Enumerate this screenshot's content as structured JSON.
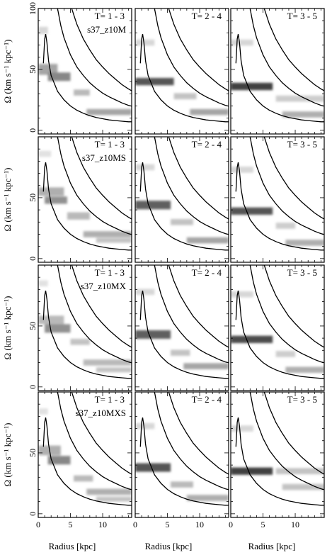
{
  "chart_data": {
    "type": "heatmap",
    "xlabel": "Radius [kpc]",
    "ylabel": "Ω (km s⁻¹ kpc⁻¹)",
    "xlim": [
      0,
      14.5
    ],
    "ylim": [
      -3,
      100
    ],
    "x_ticks": [
      0,
      5,
      10
    ],
    "y_ticks": [
      0,
      50,
      100
    ],
    "grid": false,
    "columns": [
      "T= 1 - 3",
      "T= 2 - 4",
      "T= 3 - 5"
    ],
    "rows": [
      {
        "model": "s37_z10M",
        "panels": [
          {
            "label": "T= 1 - 3",
            "bands": [
              {
                "x": [
                  0,
                  1.5
                ],
                "y": 82,
                "h": 6,
                "v": 0.2
              },
              {
                "x": [
                  0,
                  3.0
                ],
                "y": 50,
                "h": 9,
                "v": 0.45
              },
              {
                "x": [
                  1.5,
                  5.0
                ],
                "y": 44,
                "h": 7,
                "v": 0.6
              },
              {
                "x": [
                  5.5,
                  8.0
                ],
                "y": 31,
                "h": 5,
                "v": 0.35
              },
              {
                "x": [
                  7.5,
                  14.5
                ],
                "y": 15,
                "h": 5,
                "v": 0.45
              }
            ]
          },
          {
            "label": "T= 2 - 4",
            "bands": [
              {
                "x": [
                  0,
                  3.0
                ],
                "y": 72,
                "h": 5,
                "v": 0.2
              },
              {
                "x": [
                  0,
                  6.0
                ],
                "y": 40,
                "h": 6,
                "v": 0.85
              },
              {
                "x": [
                  6.0,
                  9.5
                ],
                "y": 28,
                "h": 5,
                "v": 0.3
              },
              {
                "x": [
                  8.5,
                  14.5
                ],
                "y": 15,
                "h": 5,
                "v": 0.45
              }
            ]
          },
          {
            "label": "T= 3 - 5",
            "bands": [
              {
                "x": [
                  0,
                  3.5
                ],
                "y": 72,
                "h": 5,
                "v": 0.2
              },
              {
                "x": [
                  0,
                  6.5
                ],
                "y": 36,
                "h": 6,
                "v": 0.95
              },
              {
                "x": [
                  7.0,
                  14.5
                ],
                "y": 26,
                "h": 5,
                "v": 0.25
              },
              {
                "x": [
                  8.0,
                  14.5
                ],
                "y": 13,
                "h": 5,
                "v": 0.4
              }
            ]
          }
        ]
      },
      {
        "model": "s37_z10MS",
        "panels": [
          {
            "label": "T= 1 - 3",
            "bands": [
              {
                "x": [
                  0,
                  2.0
                ],
                "y": 86,
                "h": 5,
                "v": 0.15
              },
              {
                "x": [
                  0,
                  4.0
                ],
                "y": 55,
                "h": 7,
                "v": 0.4
              },
              {
                "x": [
                  1.0,
                  4.5
                ],
                "y": 48,
                "h": 6,
                "v": 0.55
              },
              {
                "x": [
                  4.5,
                  8.0
                ],
                "y": 35,
                "h": 6,
                "v": 0.35
              },
              {
                "x": [
                  7.0,
                  14.5
                ],
                "y": 20,
                "h": 5,
                "v": 0.4
              },
              {
                "x": [
                  9.0,
                  14.5
                ],
                "y": 15,
                "h": 4,
                "v": 0.3
              }
            ]
          },
          {
            "label": "T= 2 - 4",
            "bands": [
              {
                "x": [
                  0,
                  3.0
                ],
                "y": 75,
                "h": 5,
                "v": 0.2
              },
              {
                "x": [
                  0,
                  5.5
                ],
                "y": 44,
                "h": 7,
                "v": 0.8
              },
              {
                "x": [
                  5.5,
                  9.0
                ],
                "y": 30,
                "h": 5,
                "v": 0.3
              },
              {
                "x": [
                  8.0,
                  14.5
                ],
                "y": 15,
                "h": 5,
                "v": 0.45
              }
            ]
          },
          {
            "label": "T= 3 - 5",
            "bands": [
              {
                "x": [
                  0,
                  3.5
                ],
                "y": 73,
                "h": 5,
                "v": 0.2
              },
              {
                "x": [
                  0,
                  6.5
                ],
                "y": 39,
                "h": 6,
                "v": 0.85
              },
              {
                "x": [
                  7.0,
                  10.0
                ],
                "y": 27,
                "h": 5,
                "v": 0.25
              },
              {
                "x": [
                  8.5,
                  14.5
                ],
                "y": 13,
                "h": 5,
                "v": 0.4
              }
            ]
          }
        ]
      },
      {
        "model": "s37_z10MX",
        "panels": [
          {
            "label": "T= 1 - 3",
            "bands": [
              {
                "x": [
                  0,
                  1.5
                ],
                "y": 85,
                "h": 5,
                "v": 0.15
              },
              {
                "x": [
                  0,
                  4.0
                ],
                "y": 55,
                "h": 7,
                "v": 0.35
              },
              {
                "x": [
                  1.0,
                  5.0
                ],
                "y": 48,
                "h": 7,
                "v": 0.55
              },
              {
                "x": [
                  5.0,
                  8.0
                ],
                "y": 37,
                "h": 5,
                "v": 0.3
              },
              {
                "x": [
                  7.0,
                  14.5
                ],
                "y": 20,
                "h": 5,
                "v": 0.35
              },
              {
                "x": [
                  9.0,
                  14.5
                ],
                "y": 14,
                "h": 4,
                "v": 0.3
              }
            ]
          },
          {
            "label": "T= 2 - 4",
            "bands": [
              {
                "x": [
                  0,
                  3.0
                ],
                "y": 78,
                "h": 5,
                "v": 0.2
              },
              {
                "x": [
                  0,
                  5.5
                ],
                "y": 43,
                "h": 7,
                "v": 0.8
              },
              {
                "x": [
                  5.5,
                  8.5
                ],
                "y": 28,
                "h": 5,
                "v": 0.3
              },
              {
                "x": [
                  7.5,
                  14.5
                ],
                "y": 17,
                "h": 5,
                "v": 0.45
              }
            ]
          },
          {
            "label": "T= 3 - 5",
            "bands": [
              {
                "x": [
                  0,
                  3.5
                ],
                "y": 76,
                "h": 5,
                "v": 0.2
              },
              {
                "x": [
                  0,
                  6.5
                ],
                "y": 39,
                "h": 6,
                "v": 0.9
              },
              {
                "x": [
                  7.0,
                  10.0
                ],
                "y": 27,
                "h": 5,
                "v": 0.25
              },
              {
                "x": [
                  8.5,
                  14.5
                ],
                "y": 14,
                "h": 5,
                "v": 0.4
              }
            ]
          }
        ]
      },
      {
        "model": "s37_z10MXS",
        "panels": [
          {
            "label": "T= 1 - 3",
            "bands": [
              {
                "x": [
                  0,
                  1.5
                ],
                "y": 84,
                "h": 5,
                "v": 0.15
              },
              {
                "x": [
                  0,
                  3.5
                ],
                "y": 52,
                "h": 8,
                "v": 0.4
              },
              {
                "x": [
                  1.5,
                  5.0
                ],
                "y": 44,
                "h": 7,
                "v": 0.6
              },
              {
                "x": [
                  5.5,
                  8.5
                ],
                "y": 29,
                "h": 5,
                "v": 0.35
              },
              {
                "x": [
                  7.5,
                  14.5
                ],
                "y": 18,
                "h": 5,
                "v": 0.4
              },
              {
                "x": [
                  9.0,
                  14.5
                ],
                "y": 12,
                "h": 4,
                "v": 0.3
              }
            ]
          },
          {
            "label": "T= 2 - 4",
            "bands": [
              {
                "x": [
                  0,
                  3.0
                ],
                "y": 72,
                "h": 5,
                "v": 0.2
              },
              {
                "x": [
                  0,
                  5.5
                ],
                "y": 38,
                "h": 7,
                "v": 0.85
              },
              {
                "x": [
                  5.5,
                  9.0
                ],
                "y": 24,
                "h": 5,
                "v": 0.35
              },
              {
                "x": [
                  8.0,
                  14.5
                ],
                "y": 13,
                "h": 5,
                "v": 0.4
              }
            ]
          },
          {
            "label": "T= 3 - 5",
            "bands": [
              {
                "x": [
                  0,
                  3.5
                ],
                "y": 70,
                "h": 5,
                "v": 0.2
              },
              {
                "x": [
                  0,
                  6.5
                ],
                "y": 35,
                "h": 6,
                "v": 0.95
              },
              {
                "x": [
                  7.0,
                  14.5
                ],
                "y": 35,
                "h": 5,
                "v": 0.3
              },
              {
                "x": [
                  8.0,
                  14.5
                ],
                "y": 22,
                "h": 5,
                "v": 0.3
              }
            ]
          }
        ]
      }
    ],
    "curves": [
      {
        "name": "omega-minus-kappa-half",
        "points": [
          [
            0.8,
            55
          ],
          [
            1.0,
            75
          ],
          [
            1.15,
            79
          ],
          [
            1.35,
            72
          ],
          [
            1.6,
            57
          ],
          [
            2,
            45
          ],
          [
            3,
            32
          ],
          [
            4,
            25
          ],
          [
            5,
            20
          ],
          [
            6,
            16.5
          ],
          [
            7,
            14
          ],
          [
            8,
            12
          ],
          [
            9,
            10.5
          ],
          [
            10,
            9.5
          ],
          [
            11,
            8.5
          ],
          [
            12,
            8
          ],
          [
            13,
            7.5
          ],
          [
            14,
            7
          ],
          [
            14.5,
            7
          ]
        ]
      },
      {
        "name": "omega",
        "points": [
          [
            3,
            100
          ],
          [
            3.5,
            86
          ],
          [
            4,
            76
          ],
          [
            5,
            62
          ],
          [
            6,
            52
          ],
          [
            7,
            45
          ],
          [
            8,
            39
          ],
          [
            9,
            34.5
          ],
          [
            10,
            30.5
          ],
          [
            11,
            27.5
          ],
          [
            12,
            25
          ],
          [
            13,
            22.5
          ],
          [
            14,
            20.5
          ],
          [
            14.5,
            19.8
          ]
        ]
      },
      {
        "name": "omega-plus-kappa-half",
        "points": [
          [
            5.2,
            100
          ],
          [
            6,
            87
          ],
          [
            7,
            75
          ],
          [
            8,
            66
          ],
          [
            9,
            58
          ],
          [
            10,
            52
          ],
          [
            11,
            46.5
          ],
          [
            12,
            42
          ],
          [
            13,
            37.5
          ],
          [
            14,
            34
          ],
          [
            14.5,
            32.5
          ]
        ]
      }
    ]
  }
}
